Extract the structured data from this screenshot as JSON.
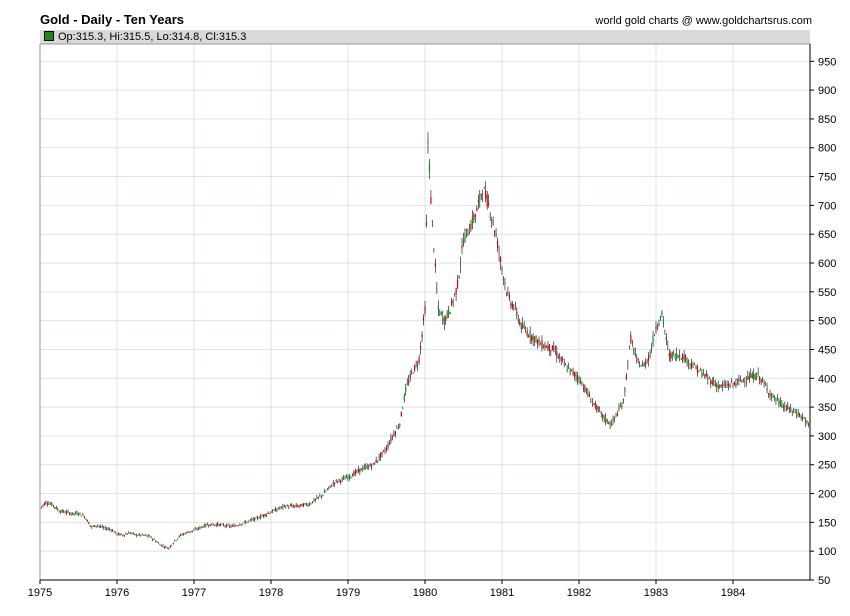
{
  "header": {
    "title": "Gold - Daily - Ten Years",
    "credit": "world gold charts @ www.goldchartsrus.com",
    "ohlc": "Op:315.3, Hi:315.5, Lo:314.8, Cl:315.3"
  },
  "colors": {
    "up": "#1a8a1a",
    "down": "#cc0000",
    "grid": "#d8e4ea",
    "axis": "#000000"
  },
  "chart_data": {
    "type": "line",
    "title": "Gold - Daily - Ten Years",
    "xlabel": "",
    "ylabel": "",
    "grid": true,
    "xlim": [
      1975,
      1985
    ],
    "ylim": [
      50,
      980
    ],
    "x_ticks": [
      "1975",
      "1976",
      "1977",
      "1978",
      "1979",
      "1980",
      "1981",
      "1982",
      "1983",
      "1984"
    ],
    "y_ticks": [
      50,
      100,
      150,
      200,
      250,
      300,
      350,
      400,
      450,
      500,
      550,
      600,
      650,
      700,
      750,
      800,
      850,
      900,
      950
    ],
    "series": [
      {
        "values_x": [
          1975.0,
          1975.08,
          1975.17,
          1975.25,
          1975.33,
          1975.42,
          1975.5,
          1975.58,
          1975.67,
          1975.75,
          1975.83,
          1975.92,
          1976.0,
          1976.08,
          1976.17,
          1976.25,
          1976.33,
          1976.42,
          1976.5,
          1976.58,
          1976.67,
          1976.75,
          1976.83,
          1976.92,
          1977.0,
          1977.17,
          1977.33,
          1977.5,
          1977.67,
          1977.83,
          1978.0,
          1978.17,
          1978.33,
          1978.5,
          1978.67,
          1978.83,
          1979.0,
          1979.17,
          1979.33,
          1979.5,
          1979.58,
          1979.67,
          1979.75,
          1979.83,
          1979.92,
          1980.0,
          1980.04,
          1980.08,
          1980.12,
          1980.17,
          1980.25,
          1980.33,
          1980.42,
          1980.5,
          1980.58,
          1980.67,
          1980.75,
          1980.83,
          1980.92,
          1981.0,
          1981.08,
          1981.17,
          1981.25,
          1981.33,
          1981.5,
          1981.67,
          1981.83,
          1982.0,
          1982.17,
          1982.33,
          1982.42,
          1982.5,
          1982.58,
          1982.67,
          1982.75,
          1982.83,
          1982.92,
          1983.0,
          1983.08,
          1983.17,
          1983.25,
          1983.33,
          1983.5,
          1983.67,
          1983.83,
          1984.0,
          1984.17,
          1984.33,
          1984.5,
          1984.58,
          1984.67,
          1984.75,
          1984.83,
          1984.92,
          1985.0
        ],
        "values_y": [
          175,
          185,
          180,
          170,
          168,
          165,
          166,
          160,
          142,
          145,
          140,
          138,
          130,
          128,
          132,
          128,
          128,
          126,
          118,
          110,
          105,
          118,
          128,
          133,
          136,
          146,
          146,
          143,
          150,
          158,
          168,
          178,
          178,
          182,
          198,
          220,
          228,
          242,
          250,
          278,
          300,
          320,
          380,
          410,
          430,
          520,
          820,
          700,
          620,
          520,
          500,
          520,
          560,
          640,
          660,
          690,
          730,
          700,
          650,
          590,
          540,
          520,
          490,
          480,
          460,
          450,
          420,
          400,
          360,
          330,
          320,
          340,
          360,
          470,
          430,
          420,
          440,
          490,
          510,
          440,
          440,
          440,
          420,
          400,
          385,
          390,
          400,
          405,
          370,
          360,
          350,
          345,
          340,
          330,
          315
        ]
      }
    ]
  }
}
